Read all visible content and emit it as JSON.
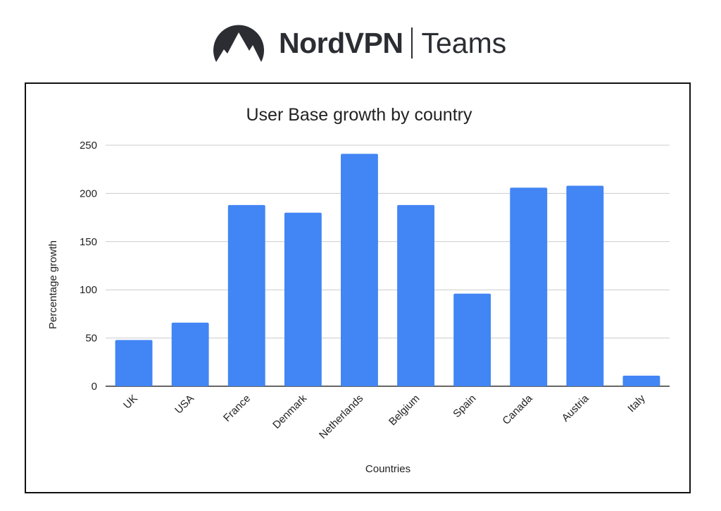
{
  "header": {
    "brand_name": "NordVPN",
    "brand_sub": "Teams",
    "logo_icon": "mountain-logo-icon"
  },
  "colors": {
    "bar": "#4285f4",
    "grid": "#cccccc",
    "axis": "#333333",
    "text": "#222222",
    "brand": "#2b2d33"
  },
  "chart_data": {
    "type": "bar",
    "title": "User Base growth by country",
    "xlabel": "Countries",
    "ylabel": "Percentage growth",
    "categories": [
      "UK",
      "USA",
      "France",
      "Denmark",
      "Netherlands",
      "Belgium",
      "Spain",
      "Canada",
      "Austria",
      "Italy"
    ],
    "values": [
      48,
      66,
      188,
      180,
      241,
      188,
      96,
      206,
      208,
      11
    ],
    "ylim": [
      0,
      250
    ],
    "yticks": [
      0,
      50,
      100,
      150,
      200,
      250
    ],
    "grid": true,
    "legend": "none"
  }
}
